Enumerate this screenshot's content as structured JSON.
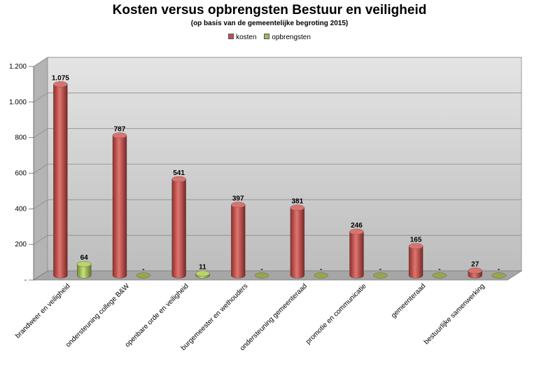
{
  "colors": {
    "kosten": "#c0504d",
    "opbrengsten": "#9bbb59",
    "wall": "#c8c8c8",
    "floor": "#a6a6a6"
  },
  "chart_data": {
    "type": "bar",
    "title": "Kosten versus opbrengsten Bestuur en veiligheid",
    "subtitle": "(op basis van de gemeentelijke begroting 2015)",
    "legend_position": "top",
    "grid": true,
    "ylim": [
      0,
      1200
    ],
    "yticks": [
      0,
      200,
      400,
      600,
      800,
      1000,
      1200
    ],
    "ytick_labels": [
      "-",
      "200",
      "400",
      "600",
      "800",
      "1.000",
      "1.200"
    ],
    "categories": [
      "brandweer en veiligheid",
      "ondersteuning college B&W",
      "openbare orde en veiligheid",
      "burgemeester en wethouders",
      "ondersteuning gemeenteraad",
      "promotie en communicatie",
      "gemeenteraad",
      "bestuurlijke samenwerking"
    ],
    "series": [
      {
        "name": "kosten",
        "values": [
          1075,
          787,
          541,
          397,
          381,
          246,
          165,
          27
        ],
        "labels": [
          "1.075",
          "787",
          "541",
          "397",
          "381",
          "246",
          "165",
          "27"
        ]
      },
      {
        "name": "opbrengsten",
        "values": [
          64,
          0,
          11,
          0,
          0,
          0,
          0,
          0
        ],
        "labels": [
          "64",
          "-",
          "11",
          "-",
          "-",
          "-",
          "-",
          "-"
        ]
      }
    ]
  }
}
